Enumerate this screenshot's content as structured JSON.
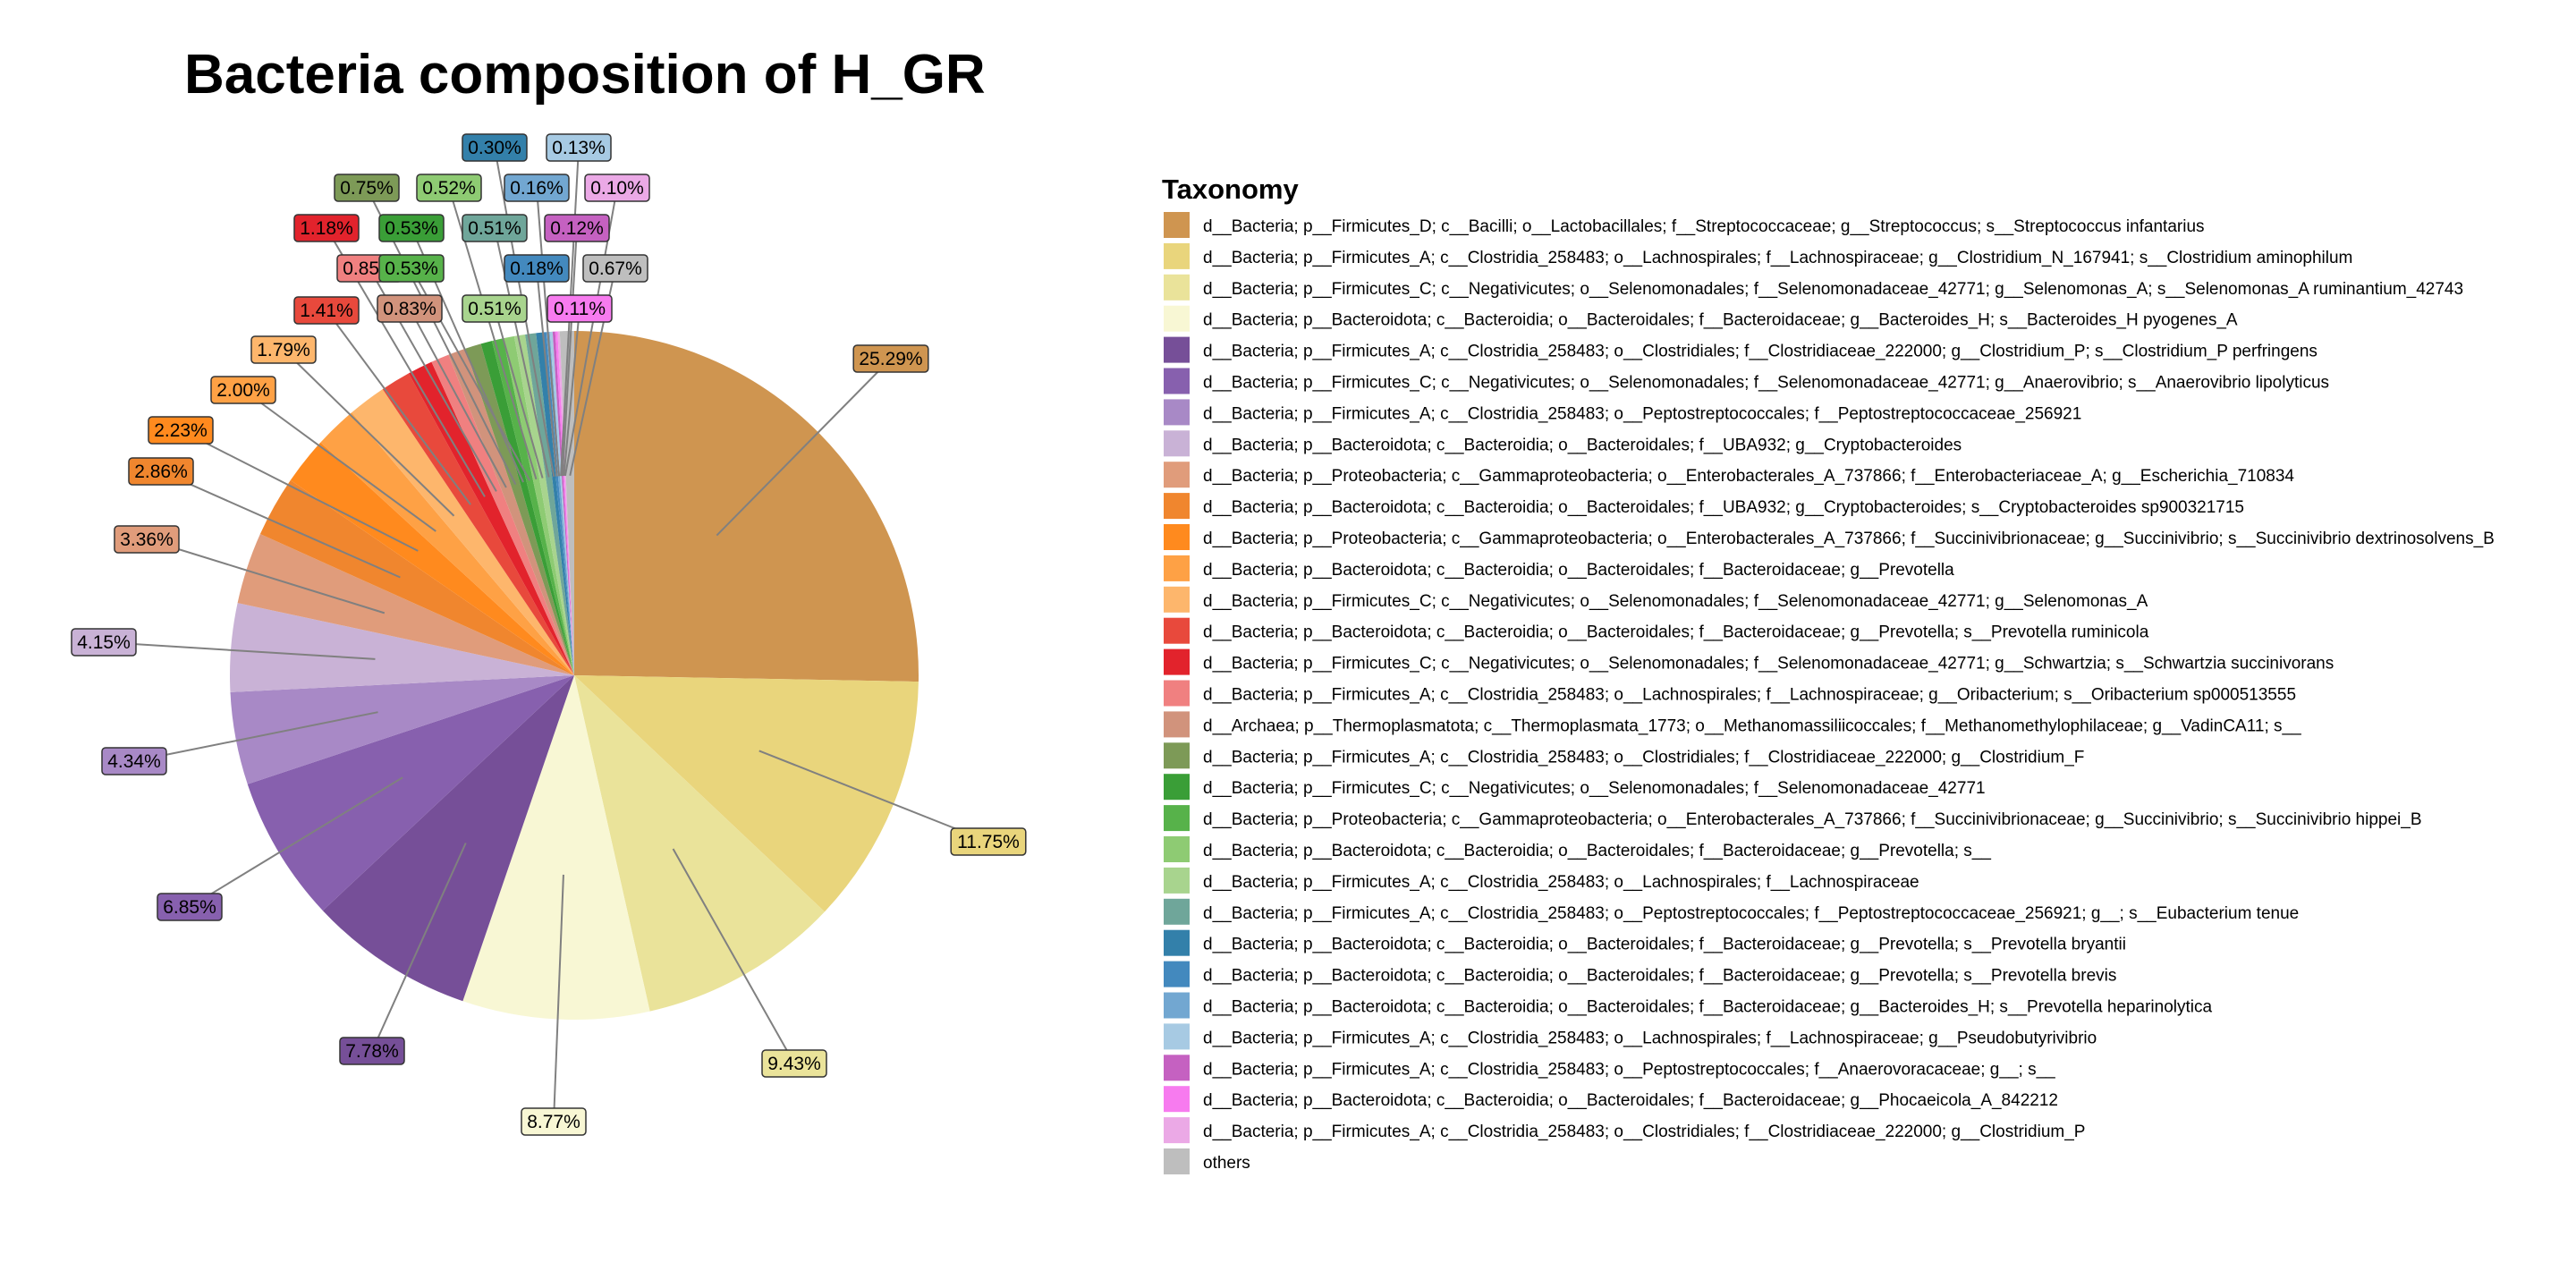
{
  "chart_data": {
    "type": "pie",
    "title": "Bacteria composition of H_GR",
    "legend_title": "Taxonomy",
    "legend_position": "right",
    "slices": [
      {
        "label": "d__Bacteria; p__Firmicutes_D; c__Bacilli; o__Lactobacillales; f__Streptococcaceae; g__Streptococcus; s__Streptococcus infantarius",
        "value": 25.29,
        "display": "25.29%",
        "color": "#CF9550"
      },
      {
        "label": "d__Bacteria; p__Firmicutes_A; c__Clostridia_258483; o__Lachnospirales; f__Lachnospiraceae; g__Clostridium_N_167941; s__Clostridium aminophilum",
        "value": 11.75,
        "display": "11.75%",
        "color": "#E9D57C"
      },
      {
        "label": "d__Bacteria; p__Firmicutes_C; c__Negativicutes; o__Selenomonadales; f__Selenomonadaceae_42771; g__Selenomonas_A; s__Selenomonas_A ruminantium_42743",
        "value": 9.43,
        "display": "9.43%",
        "color": "#EAE39A"
      },
      {
        "label": "d__Bacteria; p__Bacteroidota; c__Bacteroidia; o__Bacteroidales; f__Bacteroidaceae; g__Bacteroides_H; s__Bacteroides_H pyogenes_A",
        "value": 8.77,
        "display": "8.77%",
        "color": "#F8F7D4"
      },
      {
        "label": "d__Bacteria; p__Firmicutes_A; c__Clostridia_258483; o__Clostridiales; f__Clostridiaceae_222000; g__Clostridium_P; s__Clostridium_P perfringens",
        "value": 7.78,
        "display": "7.78%",
        "color": "#764F98"
      },
      {
        "label": "d__Bacteria; p__Firmicutes_C; c__Negativicutes; o__Selenomonadales; f__Selenomonadaceae_42771; g__Anaerovibrio; s__Anaerovibrio lipolyticus",
        "value": 6.85,
        "display": "6.85%",
        "color": "#8760AE"
      },
      {
        "label": "d__Bacteria; p__Firmicutes_A; c__Clostridia_258483; o__Peptostreptococcales; f__Peptostreptococcaceae_256921",
        "value": 4.34,
        "display": "4.34%",
        "color": "#A889C6"
      },
      {
        "label": "d__Bacteria; p__Bacteroidota; c__Bacteroidia; o__Bacteroidales; f__UBA932; g__Cryptobacteroides",
        "value": 4.15,
        "display": "4.15%",
        "color": "#C9B2D6"
      },
      {
        "label": "d__Bacteria; p__Proteobacteria; c__Gammaproteobacteria; o__Enterobacterales_A_737866; f__Enterobacteriaceae_A; g__Escherichia_710834",
        "value": 3.36,
        "display": "3.36%",
        "color": "#E09C7B"
      },
      {
        "label": "d__Bacteria; p__Bacteroidota; c__Bacteroidia; o__Bacteroidales; f__UBA932; g__Cryptobacteroides; s__Cryptobacteroides sp900321715",
        "value": 2.86,
        "display": "2.86%",
        "color": "#F0862E"
      },
      {
        "label": "d__Bacteria; p__Proteobacteria; c__Gammaproteobacteria; o__Enterobacterales_A_737866; f__Succinivibrionaceae; g__Succinivibrio; s__Succinivibrio dextrinosolvens_B",
        "value": 2.23,
        "display": "2.23%",
        "color": "#FF8A1E"
      },
      {
        "label": "d__Bacteria; p__Bacteroidota; c__Bacteroidia; o__Bacteroidales; f__Bacteroidaceae; g__Prevotella",
        "value": 2.0,
        "display": "2.00%",
        "color": "#FEA145"
      },
      {
        "label": "d__Bacteria; p__Firmicutes_C; c__Negativicutes; o__Selenomonadales; f__Selenomonadaceae_42771; g__Selenomonas_A",
        "value": 1.79,
        "display": "1.79%",
        "color": "#FDB66C"
      },
      {
        "label": "d__Bacteria; p__Bacteroidota; c__Bacteroidia; o__Bacteroidales; f__Bacteroidaceae; g__Prevotella; s__Prevotella ruminicola",
        "value": 1.41,
        "display": "1.41%",
        "color": "#E8493C"
      },
      {
        "label": "d__Bacteria; p__Firmicutes_C; c__Negativicutes; o__Selenomonadales; f__Selenomonadaceae_42771; g__Schwartzia; s__Schwartzia succinivorans",
        "value": 1.18,
        "display": "1.18%",
        "color": "#E2232C"
      },
      {
        "label": "d__Bacteria; p__Firmicutes_A; c__Clostridia_258483; o__Lachnospirales; f__Lachnospiraceae; g__Oribacterium; s__Oribacterium sp000513555",
        "value": 0.85,
        "display": "0.85%",
        "color": "#F08080"
      },
      {
        "label": "d__Archaea; p__Thermoplasmatota; c__Thermoplasmata_1773; o__Methanomassiliicoccales; f__Methanomethylophilaceae; g__VadinCA11; s__",
        "value": 0.83,
        "display": "0.83%",
        "color": "#D1937C"
      },
      {
        "label": "d__Bacteria; p__Firmicutes_A; c__Clostridia_258483; o__Clostridiales; f__Clostridiaceae_222000; g__Clostridium_F",
        "value": 0.75,
        "display": "0.75%",
        "color": "#7D9A57"
      },
      {
        "label": "d__Bacteria; p__Firmicutes_C; c__Negativicutes; o__Selenomonadales; f__Selenomonadaceae_42771",
        "value": 0.53,
        "display": "0.53%",
        "color": "#3A9E37"
      },
      {
        "label": "d__Bacteria; p__Proteobacteria; c__Gammaproteobacteria; o__Enterobacterales_A_737866; f__Succinivibrionaceae; g__Succinivibrio; s__Succinivibrio hippei_B",
        "value": 0.53,
        "display": "0.53%",
        "color": "#57B24A"
      },
      {
        "label": "d__Bacteria; p__Bacteroidota; c__Bacteroidia; o__Bacteroidales; f__Bacteroidaceae; g__Prevotella; s__",
        "value": 0.52,
        "display": "0.52%",
        "color": "#8ECB73"
      },
      {
        "label": "d__Bacteria; p__Firmicutes_A; c__Clostridia_258483; o__Lachnospirales; f__Lachnospiraceae",
        "value": 0.51,
        "display": "0.51%",
        "color": "#A8D48E"
      },
      {
        "label": "d__Bacteria; p__Firmicutes_A; c__Clostridia_258483; o__Peptostreptococcales; f__Peptostreptococcaceae_256921; g__; s__Eubacterium tenue",
        "value": 0.51,
        "display": "0.51%",
        "color": "#6FA69A"
      },
      {
        "label": "d__Bacteria; p__Bacteroidota; c__Bacteroidia; o__Bacteroidales; f__Bacteroidaceae; g__Prevotella; s__Prevotella bryantii",
        "value": 0.3,
        "display": "0.30%",
        "color": "#3380AA"
      },
      {
        "label": "d__Bacteria; p__Bacteroidota; c__Bacteroidia; o__Bacteroidales; f__Bacteroidaceae; g__Prevotella; s__Prevotella brevis",
        "value": 0.18,
        "display": "0.18%",
        "color": "#4389BE"
      },
      {
        "label": "d__Bacteria; p__Bacteroidota; c__Bacteroidia; o__Bacteroidales; f__Bacteroidaceae; g__Bacteroides_H; s__Prevotella heparinolytica",
        "value": 0.16,
        "display": "0.16%",
        "color": "#72A7D1"
      },
      {
        "label": "d__Bacteria; p__Firmicutes_A; c__Clostridia_258483; o__Lachnospirales; f__Lachnospiraceae; g__Pseudobutyrivibrio",
        "value": 0.13,
        "display": "0.13%",
        "color": "#A7CAE3"
      },
      {
        "label": "d__Bacteria; p__Firmicutes_A; c__Clostridia_258483; o__Peptostreptococcales; f__Anaerovoracaceae; g__; s__",
        "value": 0.12,
        "display": "0.12%",
        "color": "#C561C1"
      },
      {
        "label": "d__Bacteria; p__Bacteroidota; c__Bacteroidia; o__Bacteroidales; f__Bacteroidaceae; g__Phocaeicola_A_842212",
        "value": 0.11,
        "display": "0.11%",
        "color": "#F77BEF"
      },
      {
        "label": "d__Bacteria; p__Firmicutes_A; c__Clostridia_258483; o__Clostridiales; f__Clostridiaceae_222000; g__Clostridium_P",
        "value": 0.1,
        "display": "0.10%",
        "color": "#EBA9E6"
      },
      {
        "label": "others",
        "value": 0.67,
        "display": "0.67%",
        "color": "#BEBEBE"
      }
    ]
  }
}
